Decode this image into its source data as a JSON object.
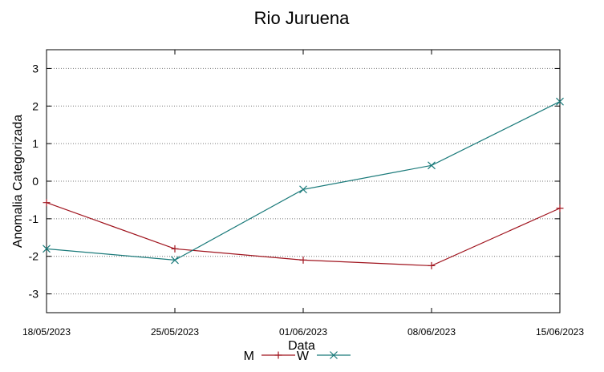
{
  "chart_data": {
    "type": "line",
    "title": "Rio Juruena",
    "xlabel": "Data",
    "ylabel": "Anomalia Categorizada",
    "categories": [
      "18/05/2023",
      "25/05/2023",
      "01/06/2023",
      "08/06/2023",
      "15/06/2023"
    ],
    "yticks": [
      "3",
      "2",
      "1",
      "0",
      "-1",
      "-2",
      "-3"
    ],
    "ylim": [
      -3.5,
      3.5
    ],
    "grid": true,
    "legend_position": "bottom",
    "series": [
      {
        "name": "M",
        "color": "#a0141e",
        "marker": "plus",
        "values": [
          -0.57,
          -1.8,
          -2.1,
          -2.25,
          -0.72
        ]
      },
      {
        "name": "W",
        "color": "#1a7a7a",
        "marker": "cross",
        "values": [
          -1.8,
          -2.1,
          -0.22,
          0.42,
          2.12
        ]
      }
    ]
  }
}
